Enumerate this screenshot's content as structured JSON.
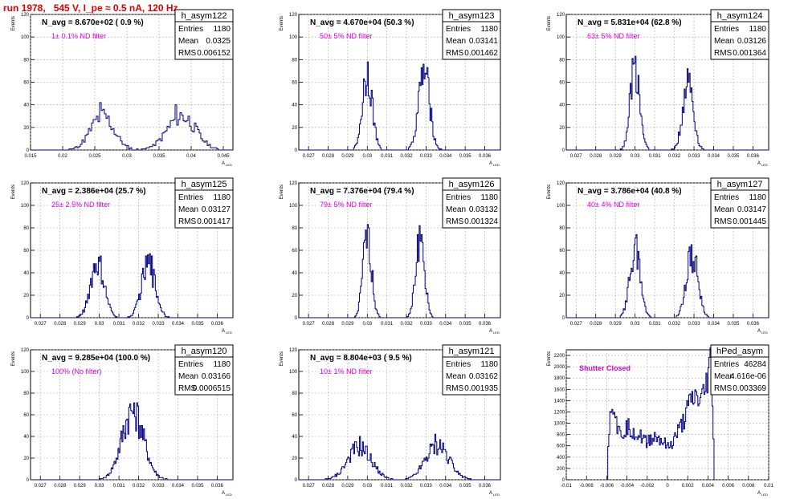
{
  "run_title": "run 1978,   545 V, I_pe ≈ 0.5 nA, 120 Hz",
  "stats_labels": {
    "entries": "Entries",
    "mean": "Mean",
    "rms": "RMS"
  },
  "y_axis_label": "Events",
  "x_axis_label": "A",
  "x_axis_sub": "LED",
  "colors": {
    "histogram": "#000080",
    "annotation": "#e000e0",
    "title": "#e00000",
    "grid": "#aaaaaa"
  },
  "chart_data": [
    {
      "type": "bar",
      "name": "h_asym122",
      "n_avg": "N_avg = 8.670e+02 ( 0.9 %)",
      "filter": "1± 0.1% ND filter",
      "entries": "1180",
      "mean": "0.0325",
      "rms": "0.006152",
      "xlim": [
        0.015,
        0.0465
      ],
      "ylim": [
        0,
        120
      ],
      "xticks": [
        0.015,
        0.02,
        0.025,
        0.03,
        0.035,
        0.04,
        0.045
      ],
      "xtick_labels": [
        "0.015",
        "0.02",
        "0.025",
        "0.03",
        "0.035",
        "0.04",
        "0.045"
      ],
      "yticks": [
        0,
        20,
        40,
        60,
        80,
        100,
        120
      ],
      "peaks": [
        {
          "mu": 0.0262,
          "sigma": 0.0018,
          "amp": 30
        },
        {
          "mu": 0.0385,
          "sigma": 0.0022,
          "amp": 30
        }
      ],
      "maxima": [
        42,
        40
      ]
    },
    {
      "type": "bar",
      "name": "h_asym123",
      "n_avg": "N_avg = 4.670e+04 (50.3 %)",
      "filter": "50± 5% ND filter",
      "entries": "1180",
      "mean": "0.03141",
      "rms": "0.001462",
      "xlim": [
        0.0265,
        0.0368
      ],
      "ylim": [
        0,
        120
      ],
      "xticks": [
        0.027,
        0.028,
        0.029,
        0.03,
        0.031,
        0.032,
        0.033,
        0.034,
        0.035,
        0.036
      ],
      "xtick_labels": [
        "0.027",
        "0.028",
        "0.029",
        "0.03",
        "0.031",
        "0.032",
        "0.033",
        "0.034",
        "0.035",
        "0.036"
      ],
      "yticks": [
        0,
        20,
        40,
        60,
        80,
        100,
        120
      ],
      "peaks": [
        {
          "mu": 0.03,
          "sigma": 0.00025,
          "amp": 70
        },
        {
          "mu": 0.0329,
          "sigma": 0.00028,
          "amp": 70
        }
      ],
      "maxima": [
        78,
        76
      ]
    },
    {
      "type": "bar",
      "name": "h_asym124",
      "n_avg": "N_avg = 5.831e+04 (62.8 %)",
      "filter": "63± 5% ND filter",
      "entries": "1180",
      "mean": "0.03126",
      "rms": "0.001364",
      "xlim": [
        0.0265,
        0.0368
      ],
      "ylim": [
        0,
        120
      ],
      "xticks": [
        0.027,
        0.028,
        0.029,
        0.03,
        0.031,
        0.032,
        0.033,
        0.034,
        0.035,
        0.036
      ],
      "xtick_labels": [
        "0.027",
        "0.028",
        "0.029",
        "0.03",
        "0.031",
        "0.032",
        "0.033",
        "0.034",
        "0.035",
        "0.036"
      ],
      "yticks": [
        0,
        20,
        40,
        60,
        80,
        100,
        120
      ],
      "peaks": [
        {
          "mu": 0.03,
          "sigma": 0.00024,
          "amp": 76
        },
        {
          "mu": 0.0327,
          "sigma": 0.00026,
          "amp": 65
        }
      ],
      "maxima": [
        83,
        72
      ]
    },
    {
      "type": "bar",
      "name": "h_asym125",
      "n_avg": "N_avg = 2.386e+04 (25.7 %)",
      "filter": "25± 2.5% ND filter",
      "entries": "1180",
      "mean": "0.03127",
      "rms": "0.001417",
      "xlim": [
        0.0265,
        0.0368
      ],
      "ylim": [
        0,
        120
      ],
      "xticks": [
        0.027,
        0.028,
        0.029,
        0.03,
        0.031,
        0.032,
        0.033,
        0.034,
        0.035,
        0.036
      ],
      "xtick_labels": [
        "0.027",
        "0.028",
        "0.029",
        "0.03",
        "0.031",
        "0.032",
        "0.033",
        "0.034",
        "0.035",
        "0.036"
      ],
      "yticks": [
        0,
        20,
        40,
        60,
        80,
        100,
        120
      ],
      "peaks": [
        {
          "mu": 0.0299,
          "sigma": 0.00035,
          "amp": 48
        },
        {
          "mu": 0.0325,
          "sigma": 0.00035,
          "amp": 48
        }
      ],
      "maxima": [
        54,
        55
      ]
    },
    {
      "type": "bar",
      "name": "h_asym126",
      "n_avg": "N_avg = 7.376e+04 (79.4 %)",
      "filter": "79± 5% ND filter",
      "entries": "1180",
      "mean": "0.03132",
      "rms": "0.001324",
      "xlim": [
        0.0265,
        0.0368
      ],
      "ylim": [
        0,
        120
      ],
      "xticks": [
        0.027,
        0.028,
        0.029,
        0.03,
        0.031,
        0.032,
        0.033,
        0.034,
        0.035,
        0.036
      ],
      "xtick_labels": [
        "0.027",
        "0.028",
        "0.029",
        "0.03",
        "0.031",
        "0.032",
        "0.033",
        "0.034",
        "0.035",
        "0.036"
      ],
      "yticks": [
        0,
        20,
        40,
        60,
        80,
        100,
        120
      ],
      "peaks": [
        {
          "mu": 0.03,
          "sigma": 0.00022,
          "amp": 74
        },
        {
          "mu": 0.0327,
          "sigma": 0.00022,
          "amp": 74
        }
      ],
      "maxima": [
        80,
        82
      ]
    },
    {
      "type": "bar",
      "name": "h_asym127",
      "n_avg": "N_avg = 3.786e+04 (40.8 %)",
      "filter": "40± 4% ND filter",
      "entries": "1180",
      "mean": "0.03147",
      "rms": "0.001445",
      "xlim": [
        0.0265,
        0.0368
      ],
      "ylim": [
        0,
        120
      ],
      "xticks": [
        0.027,
        0.028,
        0.029,
        0.03,
        0.031,
        0.032,
        0.033,
        0.034,
        0.035,
        0.036
      ],
      "xtick_labels": [
        "0.027",
        "0.028",
        "0.029",
        "0.03",
        "0.031",
        "0.032",
        "0.033",
        "0.034",
        "0.035",
        "0.036"
      ],
      "yticks": [
        0,
        20,
        40,
        60,
        80,
        100,
        120
      ],
      "peaks": [
        {
          "mu": 0.03,
          "sigma": 0.00027,
          "amp": 62
        },
        {
          "mu": 0.0329,
          "sigma": 0.00029,
          "amp": 57
        }
      ],
      "maxima": [
        74,
        63
      ]
    },
    {
      "type": "bar",
      "name": "h_asym120",
      "n_avg": "N_avg = 9.285e+04 (100.0 %)",
      "filter": "100% (No filter)",
      "entries": "1180",
      "mean": "0.03166",
      "rms": "0.0006515",
      "xlim": [
        0.0265,
        0.0368
      ],
      "ylim": [
        0,
        120
      ],
      "xticks": [
        0.027,
        0.028,
        0.029,
        0.03,
        0.031,
        0.032,
        0.033,
        0.034,
        0.035,
        0.036
      ],
      "xtick_labels": [
        "0.027",
        "0.028",
        "0.029",
        "0.03",
        "0.031",
        "0.032",
        "0.033",
        "0.034",
        "0.035",
        "0.036"
      ],
      "yticks": [
        0,
        20,
        40,
        60,
        80,
        100,
        120
      ],
      "peaks": [
        {
          "mu": 0.0317,
          "sigma": 0.00055,
          "amp": 64
        }
      ],
      "maxima": [
        71
      ]
    },
    {
      "type": "bar",
      "name": "h_asym121",
      "n_avg": "N_avg = 8.804e+03 ( 9.5 %)",
      "filter": "10± 1% ND filter",
      "entries": "1180",
      "mean": "0.03162",
      "rms": "0.001935",
      "xlim": [
        0.0265,
        0.0368
      ],
      "ylim": [
        0,
        120
      ],
      "xticks": [
        0.027,
        0.028,
        0.029,
        0.03,
        0.031,
        0.032,
        0.033,
        0.034,
        0.035,
        0.036
      ],
      "xtick_labels": [
        "0.027",
        "0.028",
        "0.029",
        "0.03",
        "0.031",
        "0.032",
        "0.033",
        "0.034",
        "0.035",
        "0.036"
      ],
      "yticks": [
        0,
        20,
        40,
        60,
        80,
        100,
        120
      ],
      "peaks": [
        {
          "mu": 0.0296,
          "sigma": 0.0006,
          "amp": 30
        },
        {
          "mu": 0.0336,
          "sigma": 0.0006,
          "amp": 32
        }
      ],
      "maxima": [
        40,
        42
      ]
    },
    {
      "type": "bar",
      "name": "hPed_asym",
      "n_avg": "",
      "filter": "Shutter Closed",
      "entries": "46284",
      "mean": "4.616e-06",
      "rms": "0.003369",
      "xlim": [
        -0.01,
        0.01
      ],
      "ylim": [
        0,
        2300
      ],
      "xticks": [
        -0.01,
        -0.008,
        -0.006,
        -0.004,
        -0.002,
        0,
        0.002,
        0.004,
        0.006,
        0.008,
        0.01
      ],
      "xtick_labels": [
        "-0.01",
        "-0.008",
        "-0.006",
        "-0.004",
        "-0.002",
        "0",
        "0.002",
        "0.004",
        "0.006",
        "0.008",
        "0.01"
      ],
      "yticks": [
        0,
        200,
        400,
        600,
        800,
        1000,
        1200,
        1400,
        1600,
        1800,
        2000,
        2200
      ],
      "profile": [
        [
          -0.006,
          0
        ],
        [
          -0.0059,
          700
        ],
        [
          -0.0057,
          1100
        ],
        [
          -0.0055,
          1450
        ],
        [
          -0.0052,
          1250
        ],
        [
          -0.005,
          900
        ],
        [
          -0.0047,
          800
        ],
        [
          -0.0043,
          850
        ],
        [
          -0.004,
          950
        ],
        [
          -0.0036,
          900
        ],
        [
          -0.0032,
          820
        ],
        [
          -0.0028,
          760
        ],
        [
          -0.0024,
          720
        ],
        [
          -0.002,
          680
        ],
        [
          -0.0016,
          740
        ],
        [
          -0.0012,
          760
        ],
        [
          -0.0008,
          720
        ],
        [
          -0.0004,
          650
        ],
        [
          0,
          560
        ],
        [
          0.0004,
          640
        ],
        [
          0.0008,
          780
        ],
        [
          0.0012,
          900
        ],
        [
          0.0016,
          1050
        ],
        [
          0.002,
          1250
        ],
        [
          0.0024,
          1400
        ],
        [
          0.0028,
          1450
        ],
        [
          0.0032,
          1380
        ],
        [
          0.0036,
          1500
        ],
        [
          0.004,
          1900
        ],
        [
          0.0043,
          2150
        ],
        [
          0.0045,
          800
        ],
        [
          0.0046,
          0
        ]
      ]
    }
  ]
}
